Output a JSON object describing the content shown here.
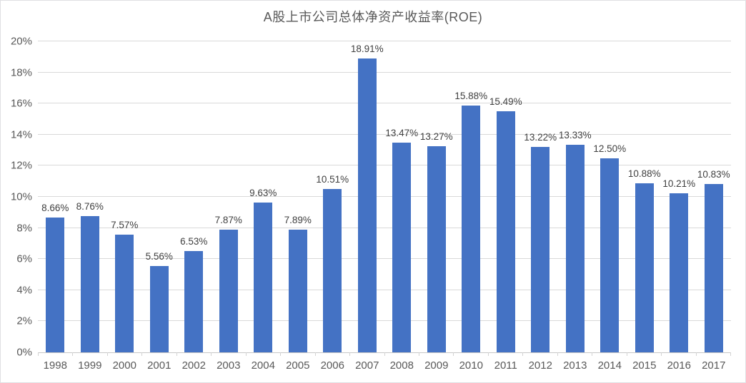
{
  "chart_data": {
    "type": "bar",
    "title": "A股上市公司总体净资产收益率(ROE)",
    "categories": [
      "1998",
      "1999",
      "2000",
      "2001",
      "2002",
      "2003",
      "2004",
      "2005",
      "2006",
      "2007",
      "2008",
      "2009",
      "2010",
      "2011",
      "2012",
      "2013",
      "2014",
      "2015",
      "2016",
      "2017"
    ],
    "values": [
      8.66,
      8.76,
      7.57,
      5.56,
      6.53,
      7.87,
      9.63,
      7.89,
      10.51,
      18.91,
      13.47,
      13.27,
      15.88,
      15.49,
      13.22,
      13.33,
      12.5,
      10.88,
      10.21,
      10.83
    ],
    "labels": [
      "8.66%",
      "8.76%",
      "7.57%",
      "5.56%",
      "6.53%",
      "7.87%",
      "9.63%",
      "7.89%",
      "10.51%",
      "18.91%",
      "13.47%",
      "13.27%",
      "15.88%",
      "15.49%",
      "13.22%",
      "13.33%",
      "12.50%",
      "10.88%",
      "10.21%",
      "10.83%"
    ],
    "y_ticks": [
      "0%",
      "2%",
      "4%",
      "6%",
      "8%",
      "10%",
      "12%",
      "14%",
      "16%",
      "18%",
      "20%"
    ],
    "ylim": [
      0,
      20
    ],
    "xlabel": "",
    "ylabel": "",
    "grid": true,
    "legend_position": "none",
    "bar_color": "#4472c4",
    "gridline_color": "#d9d9d9",
    "axis_text_color": "#595959",
    "label_text_color": "#3f3f3f"
  }
}
